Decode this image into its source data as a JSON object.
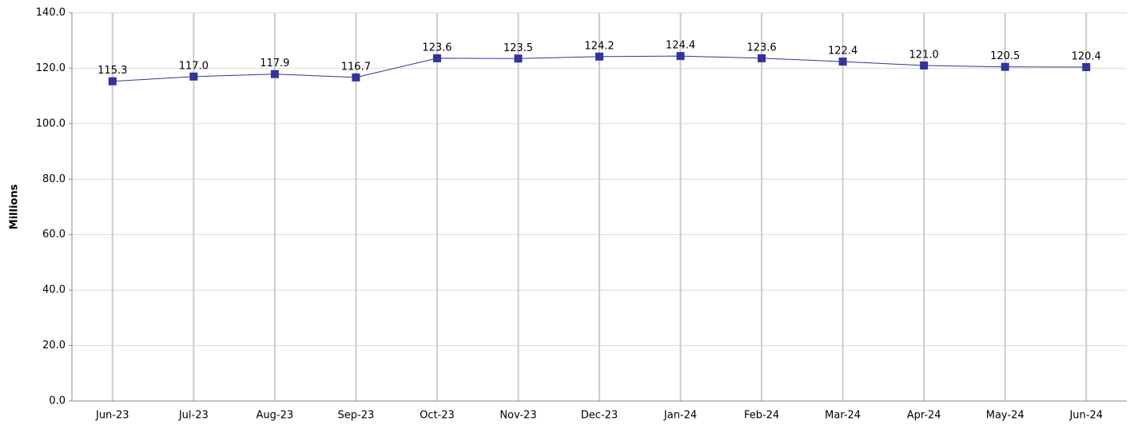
{
  "chart_data": {
    "type": "line",
    "y_label": "Millions",
    "categories": [
      "Jun-23",
      "Jul-23",
      "Aug-23",
      "Sep-23",
      "Oct-23",
      "Nov-23",
      "Dec-23",
      "Jan-24",
      "Feb-24",
      "Mar-24",
      "Apr-24",
      "May-24",
      "Jun-24"
    ],
    "values": [
      115.3,
      117.0,
      117.9,
      116.7,
      123.6,
      123.5,
      124.2,
      124.4,
      123.6,
      122.4,
      121.0,
      120.5,
      120.4
    ],
    "value_labels": [
      "115.3",
      "117.0",
      "117.9",
      "116.7",
      "123.6",
      "123.5",
      "124.2",
      "124.4",
      "123.6",
      "122.4",
      "121.0",
      "120.5",
      "120.4"
    ],
    "color": "#333399",
    "ylim": [
      0,
      140
    ],
    "yticks": [
      {
        "value": 0,
        "label": "0.0"
      },
      {
        "value": 20,
        "label": "20.0"
      },
      {
        "value": 40,
        "label": "40.0"
      },
      {
        "value": 60,
        "label": "60.0"
      },
      {
        "value": 80,
        "label": "80.0"
      },
      {
        "value": 100,
        "label": "100.0"
      },
      {
        "value": 120,
        "label": "120.0"
      },
      {
        "value": 140,
        "label": "140.0"
      }
    ],
    "grid": true
  }
}
